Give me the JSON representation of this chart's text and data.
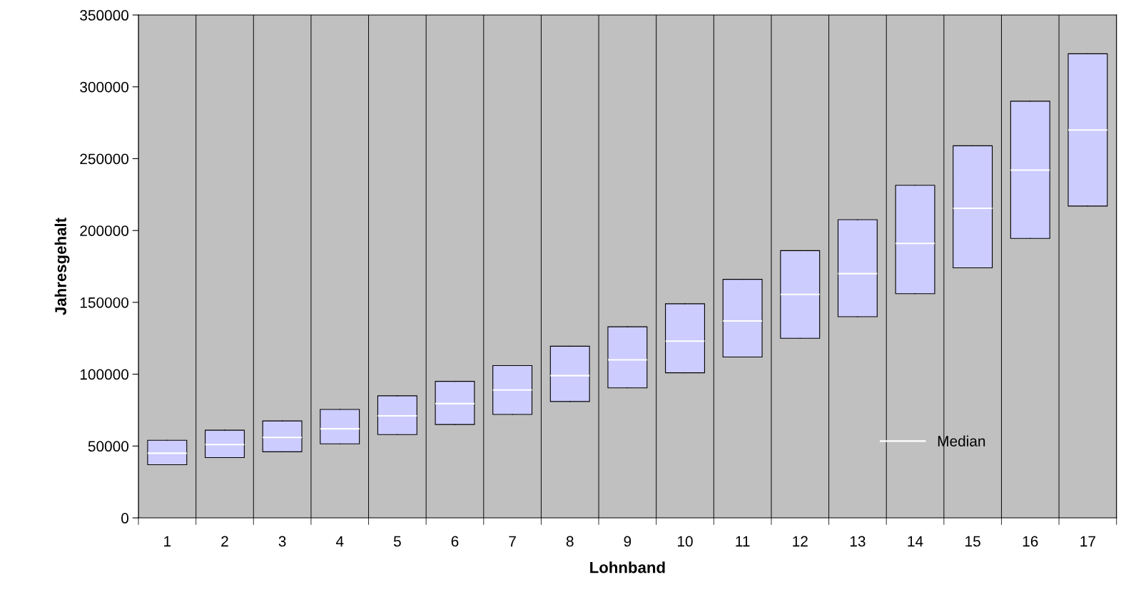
{
  "chart_data": {
    "type": "box",
    "xlabel": "Lohnband",
    "ylabel": "Jahresgehalt",
    "categories": [
      "1",
      "2",
      "3",
      "4",
      "5",
      "6",
      "7",
      "8",
      "9",
      "10",
      "11",
      "12",
      "13",
      "14",
      "15",
      "16",
      "17"
    ],
    "series": [
      {
        "name": "Median",
        "color": "#ccccff",
        "boxes": [
          {
            "low": 37000,
            "q1": 37000,
            "median": 45000,
            "q3": 54000,
            "high": 54000
          },
          {
            "low": 42000,
            "q1": 42000,
            "median": 51000,
            "q3": 61000,
            "high": 61000
          },
          {
            "low": 46000,
            "q1": 46000,
            "median": 56000,
            "q3": 67500,
            "high": 67500
          },
          {
            "low": 51500,
            "q1": 51500,
            "median": 62000,
            "q3": 75500,
            "high": 75500
          },
          {
            "low": 58000,
            "q1": 58000,
            "median": 71000,
            "q3": 85000,
            "high": 85000
          },
          {
            "low": 65000,
            "q1": 65000,
            "median": 79500,
            "q3": 95000,
            "high": 95000
          },
          {
            "low": 72000,
            "q1": 72000,
            "median": 89000,
            "q3": 106000,
            "high": 106000
          },
          {
            "low": 81000,
            "q1": 81000,
            "median": 99000,
            "q3": 119500,
            "high": 119500
          },
          {
            "low": 90500,
            "q1": 90500,
            "median": 110000,
            "q3": 133000,
            "high": 133000
          },
          {
            "low": 101000,
            "q1": 101000,
            "median": 123000,
            "q3": 149000,
            "high": 149000
          },
          {
            "low": 112000,
            "q1": 112000,
            "median": 137000,
            "q3": 166000,
            "high": 166000
          },
          {
            "low": 125000,
            "q1": 125000,
            "median": 155500,
            "q3": 186000,
            "high": 186000
          },
          {
            "low": 140000,
            "q1": 140000,
            "median": 170000,
            "q3": 207500,
            "high": 207500
          },
          {
            "low": 156000,
            "q1": 156000,
            "median": 191000,
            "q3": 231500,
            "high": 231500
          },
          {
            "low": 174000,
            "q1": 174000,
            "median": 215500,
            "q3": 259000,
            "high": 259000
          },
          {
            "low": 194500,
            "q1": 194500,
            "median": 242000,
            "q3": 290000,
            "high": 290000
          },
          {
            "low": 217000,
            "q1": 217000,
            "median": 270000,
            "q3": 323000,
            "high": 323000
          }
        ]
      }
    ],
    "ylim": [
      0,
      350000
    ],
    "yticks": [
      0,
      50000,
      100000,
      150000,
      200000,
      250000,
      300000,
      350000
    ],
    "grid": "x",
    "legend": "right"
  }
}
